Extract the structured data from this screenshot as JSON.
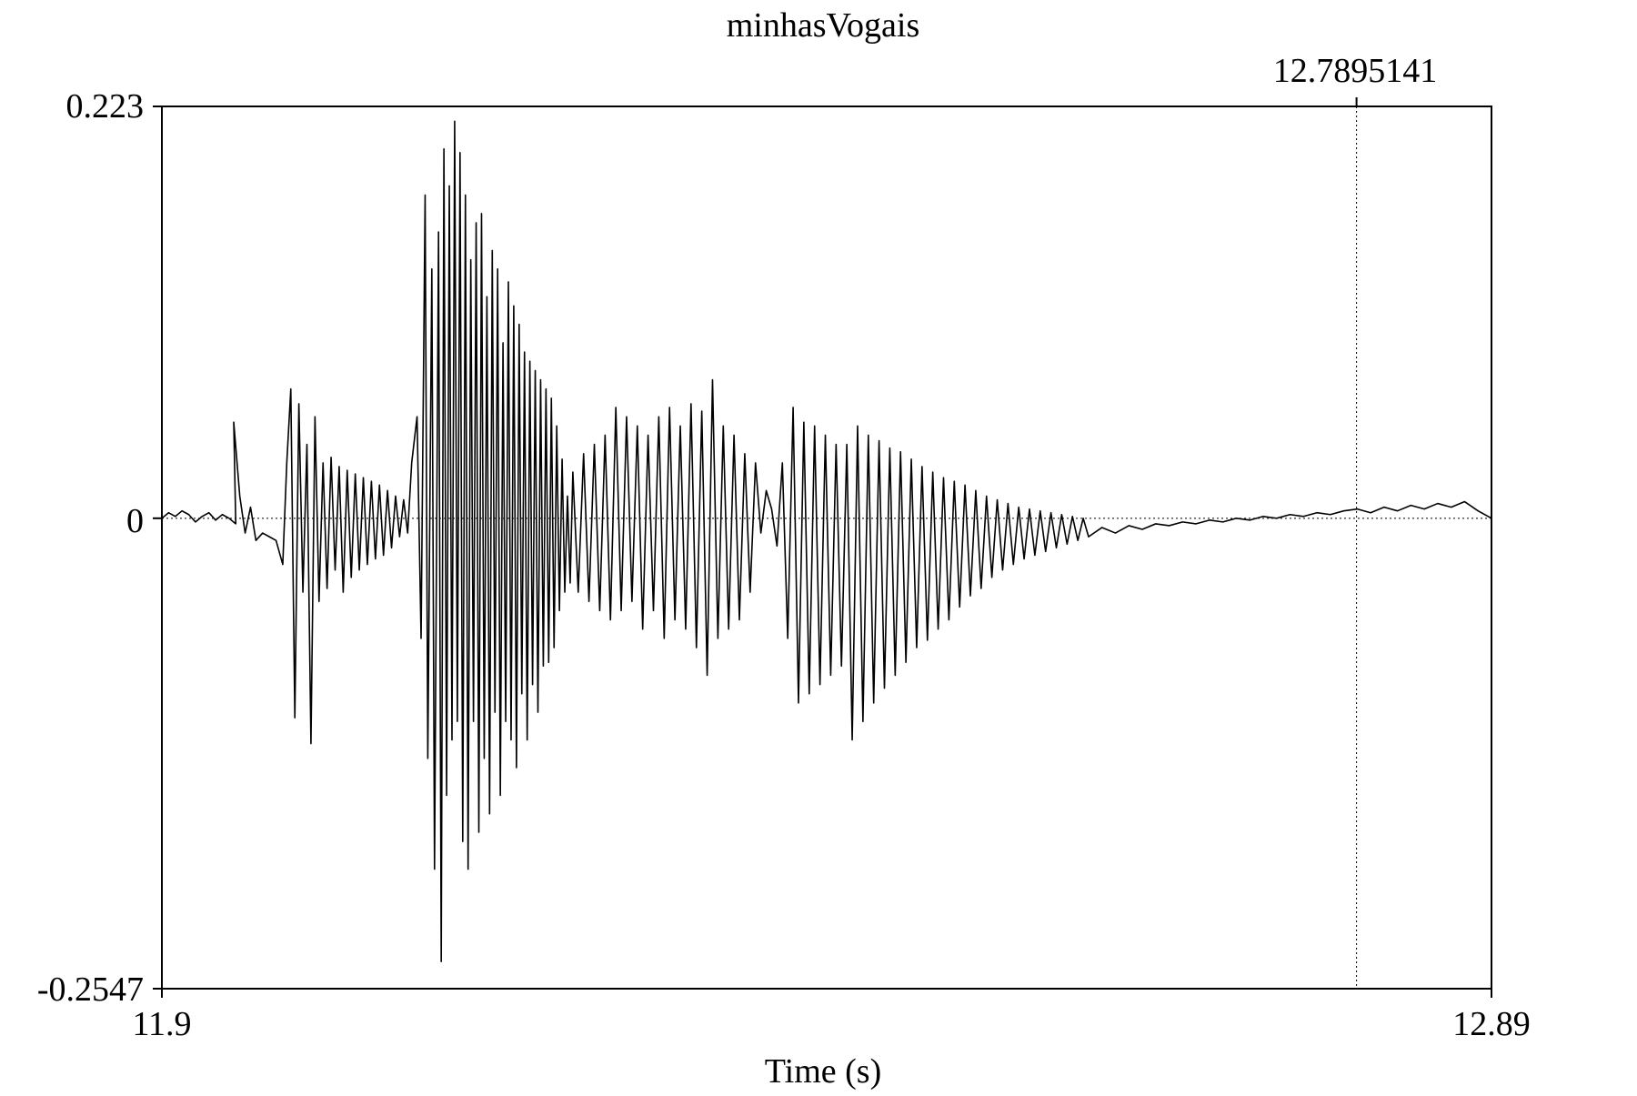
{
  "chart_data": {
    "type": "line",
    "title": "minhasVogais",
    "xlabel": "Time (s)",
    "ylabel": "",
    "xlim": [
      11.9,
      12.89
    ],
    "ylim": [
      -0.2547,
      0.223
    ],
    "x_tick_labels": [
      "11.9",
      "12.89"
    ],
    "y_tick_labels": [
      "0.223",
      "0",
      "-0.2547"
    ],
    "cursor": {
      "time": 12.7895141,
      "label": "12.7895141"
    },
    "grid": false,
    "zero_line": "dotted",
    "series": [
      {
        "points": [
          [
            11.9,
            0.0
          ],
          [
            11.905,
            0.003
          ],
          [
            11.91,
            0.001
          ],
          [
            11.915,
            0.004
          ],
          [
            11.92,
            0.002
          ],
          [
            11.925,
            -0.002
          ],
          [
            11.93,
            0.001
          ],
          [
            11.935,
            0.003
          ],
          [
            11.94,
            -0.001
          ],
          [
            11.945,
            0.002
          ],
          [
            11.95,
            0.0
          ],
          [
            11.955,
            -0.003
          ],
          [
            11.9535,
            0.052
          ],
          [
            11.958,
            0.012
          ],
          [
            11.962,
            -0.008
          ],
          [
            11.966,
            0.006
          ],
          [
            11.97,
            -0.012
          ],
          [
            11.975,
            -0.008
          ],
          [
            11.98,
            -0.01
          ],
          [
            11.985,
            -0.012
          ],
          [
            11.99,
            -0.025
          ],
          [
            11.993,
            0.03
          ],
          [
            11.996,
            0.07
          ],
          [
            11.999,
            -0.108
          ],
          [
            12.002,
            0.062
          ],
          [
            12.005,
            -0.04
          ],
          [
            12.008,
            0.04
          ],
          [
            12.011,
            -0.122
          ],
          [
            12.014,
            0.055
          ],
          [
            12.017,
            -0.045
          ],
          [
            12.02,
            0.03
          ],
          [
            12.023,
            -0.038
          ],
          [
            12.026,
            0.033
          ],
          [
            12.029,
            -0.028
          ],
          [
            12.032,
            0.028
          ],
          [
            12.035,
            -0.04
          ],
          [
            12.038,
            0.026
          ],
          [
            12.041,
            -0.032
          ],
          [
            12.044,
            0.024
          ],
          [
            12.047,
            -0.028
          ],
          [
            12.05,
            0.022
          ],
          [
            12.053,
            -0.025
          ],
          [
            12.056,
            0.02
          ],
          [
            12.059,
            -0.022
          ],
          [
            12.062,
            0.018
          ],
          [
            12.065,
            -0.02
          ],
          [
            12.068,
            0.015
          ],
          [
            12.071,
            -0.016
          ],
          [
            12.074,
            0.012
          ],
          [
            12.077,
            -0.01
          ],
          [
            12.08,
            0.01
          ],
          [
            12.083,
            -0.008
          ],
          [
            12.086,
            0.03
          ],
          [
            12.09,
            0.055
          ],
          [
            12.093,
            -0.065
          ],
          [
            12.096,
            0.175
          ],
          [
            12.098,
            -0.13
          ],
          [
            12.101,
            0.135
          ],
          [
            12.103,
            -0.19
          ],
          [
            12.106,
            0.155
          ],
          [
            12.108,
            -0.24
          ],
          [
            12.11,
            0.2
          ],
          [
            12.112,
            -0.15
          ],
          [
            12.114,
            0.18
          ],
          [
            12.116,
            -0.12
          ],
          [
            12.118,
            0.215
          ],
          [
            12.12,
            -0.11
          ],
          [
            12.122,
            0.198
          ],
          [
            12.124,
            -0.175
          ],
          [
            12.126,
            0.175
          ],
          [
            12.128,
            -0.19
          ],
          [
            12.13,
            0.14
          ],
          [
            12.132,
            -0.11
          ],
          [
            12.134,
            0.16
          ],
          [
            12.136,
            -0.17
          ],
          [
            12.138,
            0.165
          ],
          [
            12.14,
            -0.13
          ],
          [
            12.142,
            0.12
          ],
          [
            12.144,
            -0.16
          ],
          [
            12.146,
            0.145
          ],
          [
            12.148,
            -0.105
          ],
          [
            12.15,
            0.135
          ],
          [
            12.152,
            -0.15
          ],
          [
            12.154,
            0.095
          ],
          [
            12.156,
            -0.11
          ],
          [
            12.158,
            0.128
          ],
          [
            12.16,
            -0.12
          ],
          [
            12.162,
            0.115
          ],
          [
            12.164,
            -0.135
          ],
          [
            12.166,
            0.105
          ],
          [
            12.168,
            -0.095
          ],
          [
            12.17,
            0.09
          ],
          [
            12.172,
            -0.12
          ],
          [
            12.174,
            0.085
          ],
          [
            12.176,
            -0.09
          ],
          [
            12.178,
            0.08
          ],
          [
            12.18,
            -0.105
          ],
          [
            12.182,
            0.075
          ],
          [
            12.184,
            -0.08
          ],
          [
            12.186,
            0.07
          ],
          [
            12.188,
            -0.078
          ],
          [
            12.19,
            0.065
          ],
          [
            12.192,
            -0.07
          ],
          [
            12.194,
            0.05
          ],
          [
            12.196,
            -0.05
          ],
          [
            12.198,
            0.032
          ],
          [
            12.2,
            -0.04
          ],
          [
            12.202,
            0.012
          ],
          [
            12.204,
            -0.035
          ],
          [
            12.206,
            0.025
          ],
          [
            12.21,
            -0.04
          ],
          [
            12.214,
            0.035
          ],
          [
            12.218,
            -0.045
          ],
          [
            12.222,
            0.04
          ],
          [
            12.226,
            -0.05
          ],
          [
            12.23,
            0.045
          ],
          [
            12.234,
            -0.055
          ],
          [
            12.238,
            0.06
          ],
          [
            12.242,
            -0.05
          ],
          [
            12.246,
            0.055
          ],
          [
            12.25,
            -0.045
          ],
          [
            12.254,
            0.05
          ],
          [
            12.258,
            -0.06
          ],
          [
            12.262,
            0.045
          ],
          [
            12.266,
            -0.05
          ],
          [
            12.27,
            0.055
          ],
          [
            12.274,
            -0.065
          ],
          [
            12.278,
            0.06
          ],
          [
            12.282,
            -0.055
          ],
          [
            12.286,
            0.05
          ],
          [
            12.29,
            -0.06
          ],
          [
            12.294,
            0.062
          ],
          [
            12.298,
            -0.07
          ],
          [
            12.302,
            0.058
          ],
          [
            12.306,
            -0.085
          ],
          [
            12.31,
            0.075
          ],
          [
            12.314,
            -0.065
          ],
          [
            12.318,
            0.05
          ],
          [
            12.322,
            -0.06
          ],
          [
            12.326,
            0.045
          ],
          [
            12.33,
            -0.055
          ],
          [
            12.334,
            0.035
          ],
          [
            12.338,
            -0.04
          ],
          [
            12.342,
            0.03
          ],
          [
            12.346,
            -0.008
          ],
          [
            12.35,
            0.015
          ],
          [
            12.354,
            0.005
          ],
          [
            12.358,
            -0.015
          ],
          [
            12.362,
            0.03
          ],
          [
            12.366,
            -0.065
          ],
          [
            12.37,
            0.06
          ],
          [
            12.374,
            -0.1
          ],
          [
            12.378,
            0.052
          ],
          [
            12.382,
            -0.095
          ],
          [
            12.386,
            0.05
          ],
          [
            12.39,
            -0.09
          ],
          [
            12.394,
            0.045
          ],
          [
            12.398,
            -0.085
          ],
          [
            12.402,
            0.04
          ],
          [
            12.406,
            -0.08
          ],
          [
            12.41,
            0.04
          ],
          [
            12.414,
            -0.12
          ],
          [
            12.418,
            0.05
          ],
          [
            12.422,
            -0.11
          ],
          [
            12.426,
            0.045
          ],
          [
            12.43,
            -0.1
          ],
          [
            12.434,
            0.042
          ],
          [
            12.438,
            -0.092
          ],
          [
            12.442,
            0.038
          ],
          [
            12.446,
            -0.085
          ],
          [
            12.45,
            0.036
          ],
          [
            12.454,
            -0.078
          ],
          [
            12.458,
            0.032
          ],
          [
            12.462,
            -0.07
          ],
          [
            12.466,
            0.028
          ],
          [
            12.47,
            -0.066
          ],
          [
            12.474,
            0.025
          ],
          [
            12.478,
            -0.06
          ],
          [
            12.482,
            0.022
          ],
          [
            12.486,
            -0.055
          ],
          [
            12.49,
            0.02
          ],
          [
            12.494,
            -0.048
          ],
          [
            12.498,
            0.018
          ],
          [
            12.502,
            -0.042
          ],
          [
            12.506,
            0.015
          ],
          [
            12.51,
            -0.038
          ],
          [
            12.514,
            0.012
          ],
          [
            12.518,
            -0.032
          ],
          [
            12.522,
            0.01
          ],
          [
            12.526,
            -0.028
          ],
          [
            12.53,
            0.008
          ],
          [
            12.534,
            -0.025
          ],
          [
            12.538,
            0.006
          ],
          [
            12.542,
            -0.022
          ],
          [
            12.546,
            0.005
          ],
          [
            12.55,
            -0.02
          ],
          [
            12.554,
            0.004
          ],
          [
            12.558,
            -0.018
          ],
          [
            12.562,
            0.003
          ],
          [
            12.566,
            -0.016
          ],
          [
            12.57,
            0.002
          ],
          [
            12.574,
            -0.014
          ],
          [
            12.578,
            0.001
          ],
          [
            12.582,
            -0.012
          ],
          [
            12.586,
            0.0
          ],
          [
            12.59,
            -0.01
          ],
          [
            12.6,
            -0.005
          ],
          [
            12.61,
            -0.008
          ],
          [
            12.62,
            -0.004
          ],
          [
            12.63,
            -0.006
          ],
          [
            12.64,
            -0.003
          ],
          [
            12.65,
            -0.004
          ],
          [
            12.66,
            -0.002
          ],
          [
            12.67,
            -0.003
          ],
          [
            12.68,
            -0.001
          ],
          [
            12.69,
            -0.002
          ],
          [
            12.7,
            0.0
          ],
          [
            12.71,
            -0.001
          ],
          [
            12.72,
            0.001
          ],
          [
            12.73,
            0.0
          ],
          [
            12.74,
            0.002
          ],
          [
            12.75,
            0.001
          ],
          [
            12.76,
            0.003
          ],
          [
            12.77,
            0.002
          ],
          [
            12.78,
            0.004
          ],
          [
            12.79,
            0.005
          ],
          [
            12.8,
            0.003
          ],
          [
            12.81,
            0.006
          ],
          [
            12.82,
            0.004
          ],
          [
            12.83,
            0.007
          ],
          [
            12.84,
            0.005
          ],
          [
            12.85,
            0.008
          ],
          [
            12.86,
            0.006
          ],
          [
            12.87,
            0.009
          ],
          [
            12.88,
            0.004
          ],
          [
            12.89,
            0.0
          ]
        ]
      }
    ]
  }
}
